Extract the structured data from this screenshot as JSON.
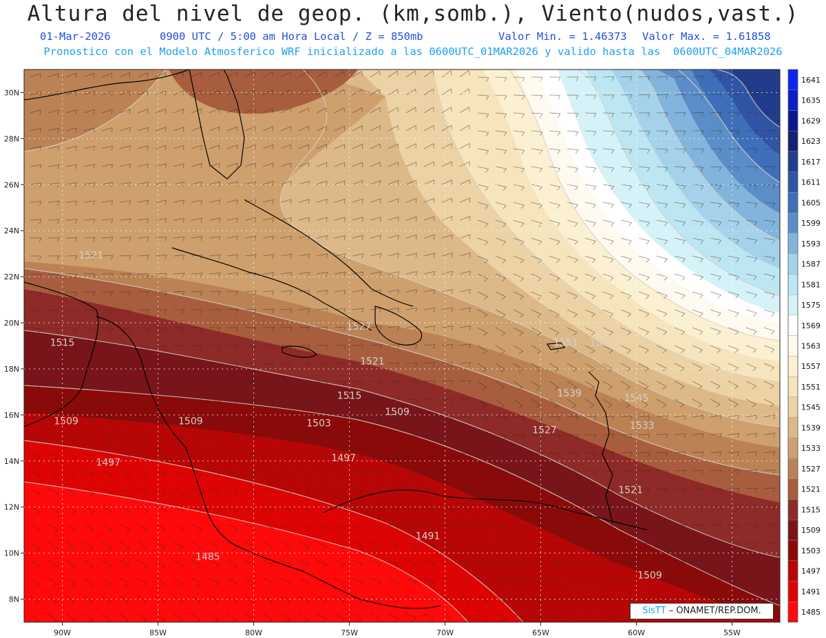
{
  "header": {
    "title": "Altura del nivel de geop. (km,somb.), Viento(nudos,vast.)",
    "date": "01-Mar-2026",
    "time": "0900 UTC / 5:00 am Hora Local / Z = 850mb",
    "min_value": "Valor Min. = 1.46373",
    "max_value": "Valor Max. = 1.61858",
    "forecast_info": "Pronostico con el Modelo Atmosferico WRF inicializado a las 0600UTC_01MAR2026 y valido hasta las  0600UTC_04MAR2026"
  },
  "map": {
    "lon_range": [
      -92,
      -52.5
    ],
    "lat_range": [
      7,
      31
    ],
    "lon_ticks": [
      "90W",
      "85W",
      "80W",
      "75W",
      "70W",
      "65W",
      "60W",
      "55W"
    ],
    "lat_ticks": [
      "30N",
      "28N",
      "26N",
      "24N",
      "22N",
      "20N",
      "18N",
      "16N",
      "14N",
      "12N",
      "10N",
      "8N"
    ],
    "gridlines": true
  },
  "colorbar": {
    "levels": [
      "1641",
      "1635",
      "1629",
      "1623",
      "1617",
      "1611",
      "1605",
      "1599",
      "1593",
      "1587",
      "1581",
      "1575",
      "1569",
      "1563",
      "1557",
      "1551",
      "1545",
      "1539",
      "1533",
      "1527",
      "1521",
      "1515",
      "1509",
      "1503",
      "1497",
      "1491",
      "1485"
    ],
    "colors": [
      "#0b24f5",
      "#0a1ec8",
      "#0b168e",
      "#142073",
      "#223c8c",
      "#2f55a4",
      "#3f6fb8",
      "#5b8ec8",
      "#82b4dc",
      "#a4d2ea",
      "#bce6f2",
      "#d4f2f8",
      "#ffffff",
      "#fffaf0",
      "#fbf0d2",
      "#f5e4bc",
      "#ecd2a4",
      "#ddb888",
      "#cda06e",
      "#bb8256",
      "#a85e3e",
      "#8e2a28",
      "#78141a",
      "#8a0a0a",
      "#b80606",
      "#de0404",
      "#ff0a0a"
    ]
  },
  "contour_labels": [
    {
      "text": "1521",
      "lon": -88.5,
      "lat": 22.8
    },
    {
      "text": "1527",
      "lon": -74.5,
      "lat": 19.7
    },
    {
      "text": "1521",
      "lon": -73.8,
      "lat": 18.2
    },
    {
      "text": "1515",
      "lon": -90,
      "lat": 19
    },
    {
      "text": "1515",
      "lon": -75,
      "lat": 16.7
    },
    {
      "text": "1551",
      "lon": -63.7,
      "lat": 19
    },
    {
      "text": "1557",
      "lon": -61.8,
      "lat": 19
    },
    {
      "text": "1539",
      "lon": -63.5,
      "lat": 16.8
    },
    {
      "text": "1545",
      "lon": -60,
      "lat": 16.6
    },
    {
      "text": "1527",
      "lon": -64.8,
      "lat": 15.2
    },
    {
      "text": "1533",
      "lon": -59.7,
      "lat": 15.4
    },
    {
      "text": "1509",
      "lon": -89.8,
      "lat": 15.6
    },
    {
      "text": "1509",
      "lon": -83.3,
      "lat": 15.6
    },
    {
      "text": "1509",
      "lon": -72.5,
      "lat": 16
    },
    {
      "text": "1503",
      "lon": -76.6,
      "lat": 15.5
    },
    {
      "text": "1497",
      "lon": -87.6,
      "lat": 13.8
    },
    {
      "text": "1497",
      "lon": -75.3,
      "lat": 14
    },
    {
      "text": "1521",
      "lon": -60.3,
      "lat": 12.6
    },
    {
      "text": "1491",
      "lon": -70.9,
      "lat": 10.6
    },
    {
      "text": "1485",
      "lon": -82.4,
      "lat": 9.7
    },
    {
      "text": "1509",
      "lon": -59.3,
      "lat": 8.9
    }
  ],
  "credit": {
    "brand": "SisTT",
    "org": " – ONAMET/REP.DOM."
  }
}
